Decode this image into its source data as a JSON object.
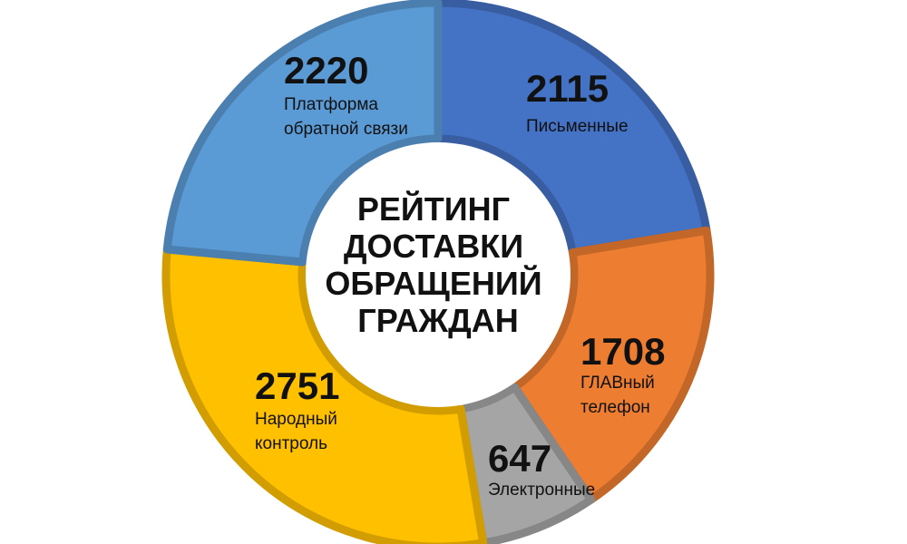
{
  "chart_data": {
    "type": "pie",
    "variant": "donut",
    "title_lines": [
      "РЕЙТИНГ",
      "ДОСТАВКИ",
      "ОБРАЩЕНИЙ",
      "ГРАЖДАН"
    ],
    "slices": [
      {
        "value": 2115,
        "label_lines": [
          "Письменные"
        ],
        "color": "#4472C4"
      },
      {
        "value": 1708,
        "label_lines": [
          "ГЛАВный",
          "телефон"
        ],
        "color": "#ED7D31"
      },
      {
        "value": 647,
        "label_lines": [
          "Электронные"
        ],
        "color": "#A5A5A5"
      },
      {
        "value": 2751,
        "label_lines": [
          "Народный",
          "контроль"
        ],
        "color": "#FFC000"
      },
      {
        "value": 2220,
        "label_lines": [
          "Платформа",
          "обратной связи"
        ],
        "color": "#5B9BD5"
      }
    ],
    "start": "top",
    "direction": "clockwise"
  }
}
